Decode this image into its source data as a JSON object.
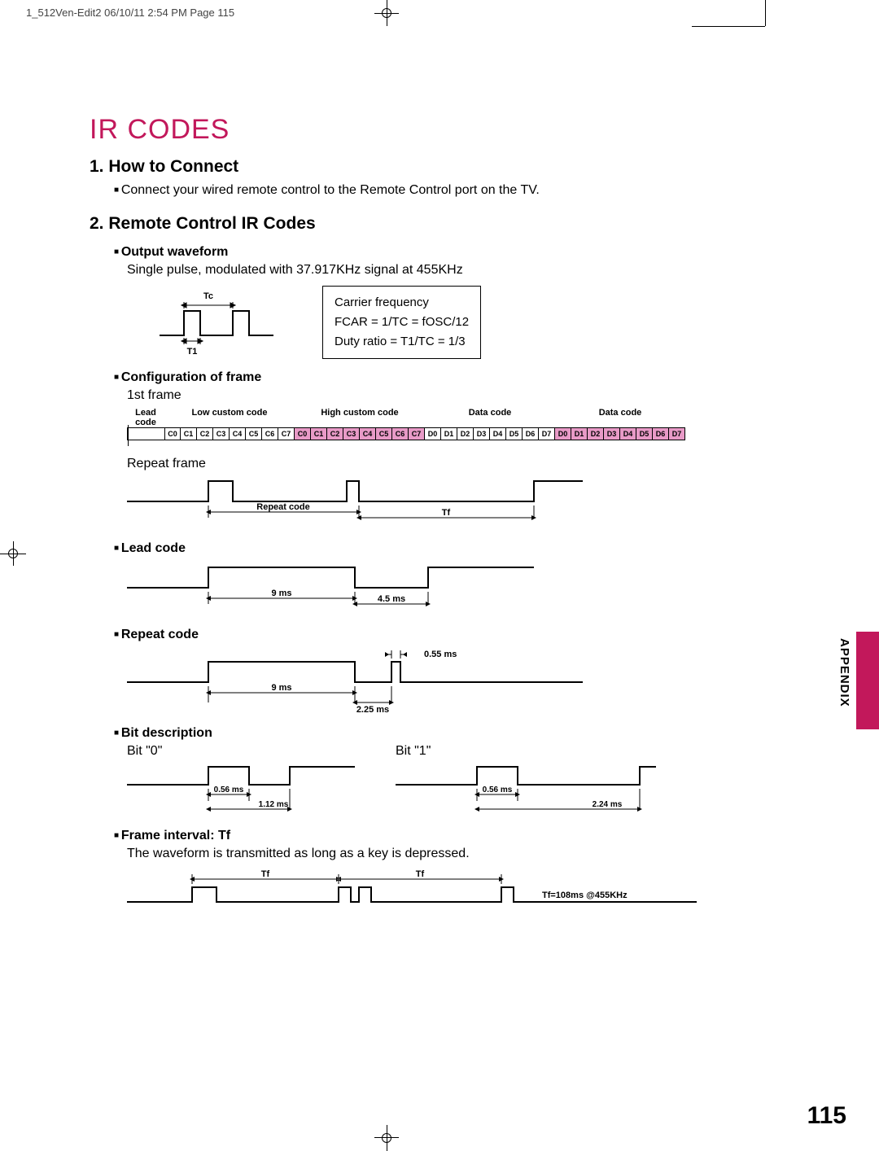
{
  "header": "1_512Ven-Edit2   06/10/11 2:54 PM   Page 115",
  "title": "IR CODES",
  "s1": {
    "heading": "1. How to Connect",
    "body": "Connect your wired remote control to the Remote Control port on the TV."
  },
  "s2": {
    "heading": "2. Remote Control IR Codes",
    "output": {
      "title": "Output waveform",
      "body": "Single pulse, modulated with 37.917KHz signal at 455KHz",
      "tc_label": "Tc",
      "t1_label": "T1",
      "carrier": {
        "l1": "Carrier frequency",
        "l2": "FCAR = 1/TC = fOSC/12",
        "l3": "Duty ratio = T1/TC = 1/3"
      }
    },
    "config": {
      "title": "Configuration of frame",
      "first_frame": "1st frame",
      "sections": [
        "Lead code",
        "Low custom code",
        "High custom code",
        "Data code",
        "Data code"
      ],
      "low": [
        "C0",
        "C1",
        "C2",
        "C3",
        "C4",
        "C5",
        "C6",
        "C7"
      ],
      "high": [
        "C0",
        "C1",
        "C2",
        "C3",
        "C4",
        "C5",
        "C6",
        "C7"
      ],
      "data1": [
        "D0",
        "D1",
        "D2",
        "D3",
        "D4",
        "D5",
        "D6",
        "D7"
      ],
      "data2": [
        "D0",
        "D1",
        "D2",
        "D3",
        "D4",
        "D5",
        "D6",
        "D7"
      ],
      "repeat_frame": "Repeat frame",
      "repeat_code_label": "Repeat code",
      "tf_label": "Tf"
    },
    "lead": {
      "title": "Lead code",
      "t1": "9 ms",
      "t2": "4.5 ms"
    },
    "repeat": {
      "title": "Repeat code",
      "t1": "9 ms",
      "t2": "2.25 ms",
      "t3": "0.55 ms"
    },
    "bit": {
      "title": "Bit description",
      "b0": "Bit \"0\"",
      "b1": "Bit \"1\"",
      "t056": "0.56 ms",
      "t112": "1.12 ms",
      "t224": "2.24 ms"
    },
    "interval": {
      "title": "Frame interval: Tf",
      "body": "The waveform is transmitted as long as a key is depressed.",
      "tf": "Tf",
      "note": "Tf=108ms @455KHz"
    }
  },
  "sidebar": "APPENDIX",
  "page_number": "115",
  "colors": {
    "accent": "#c2185b",
    "pink": "#e89ac7"
  }
}
